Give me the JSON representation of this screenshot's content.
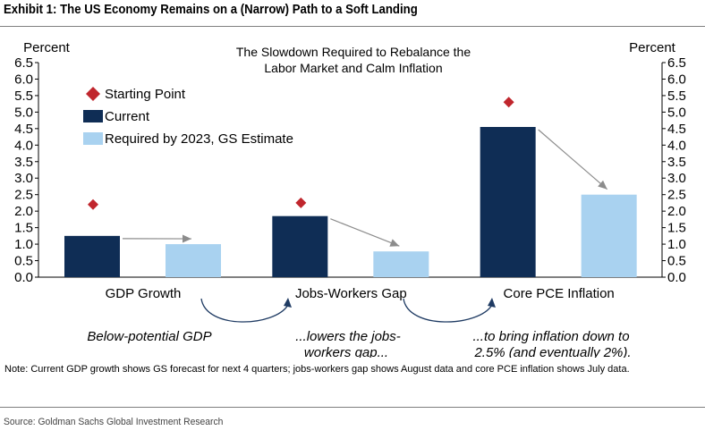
{
  "exhibit_title": "Exhibit 1: The US Economy Remains on a (Narrow) Path to a Soft Landing",
  "note": "Note: Current GDP growth shows GS forecast for next 4 quarters; jobs-workers gap shows August data and core PCE inflation shows July data.",
  "source": "Source: Goldman Sachs Global Investment Research",
  "annotations": {
    "gdp": "Below-potential GDP",
    "jobs_line1": "...lowers the jobs-",
    "jobs_line2": "workers gap...",
    "pce_line1": "...to bring inflation down to",
    "pce_line2": "2.5% (and eventually 2%)."
  },
  "colors": {
    "current": "#0f2d55",
    "required": "#a9d2f0",
    "starting": "#c0262d",
    "arrow": "#8c8c8c",
    "curve": "#1f3b63"
  },
  "chart_data": {
    "type": "bar",
    "title_line1": "The Slowdown Required to Rebalance the",
    "title_line2": "Labor Market and Calm Inflation",
    "ylabel_left": "Percent",
    "ylabel_right": "Percent",
    "ylim": [
      0,
      6.5
    ],
    "yticks": [
      "0.0",
      "0.5",
      "1.0",
      "1.5",
      "2.0",
      "2.5",
      "3.0",
      "3.5",
      "4.0",
      "4.5",
      "5.0",
      "5.5",
      "6.0",
      "6.5"
    ],
    "categories": [
      "GDP Growth",
      "Jobs-Workers Gap",
      "Core PCE Inflation"
    ],
    "series": [
      {
        "name": "Current",
        "values": [
          1.25,
          1.85,
          4.55
        ]
      },
      {
        "name": "Required by 2023, GS Estimate",
        "values": [
          1.0,
          0.78,
          2.5
        ]
      }
    ],
    "markers": {
      "name": "Starting Point",
      "values": [
        2.2,
        2.25,
        5.3
      ]
    },
    "legend": [
      "Starting Point",
      "Current",
      "Required by 2023, GS Estimate"
    ]
  }
}
